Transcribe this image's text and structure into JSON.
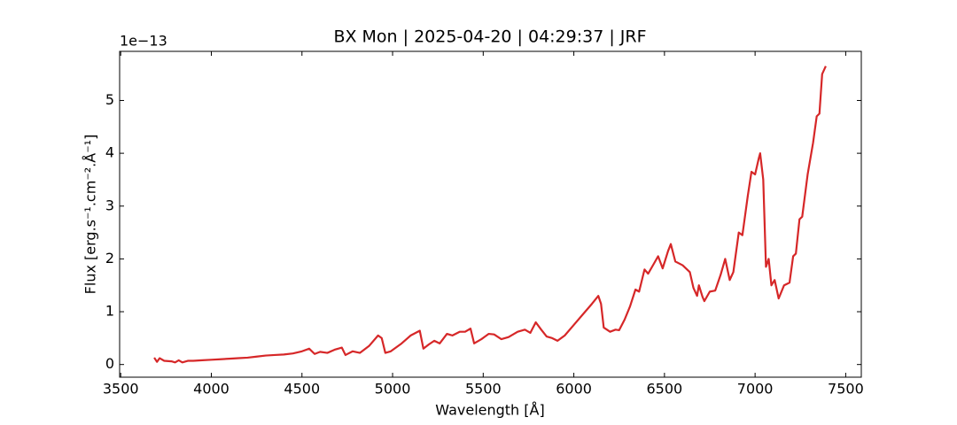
{
  "chart_data": {
    "type": "line",
    "title": "BX Mon | 2025-04-20 | 04:29:37 | JRF",
    "xlabel": "Wavelength [Å]",
    "ylabel": "Flux [erg.s⁻¹.cm⁻².Å⁻¹]",
    "y_offset_label": "1e−13",
    "color": "#d62728",
    "xlim": [
      3494,
      7586
    ],
    "ylim": [
      -0.24,
      5.93
    ],
    "xticks": [
      3500,
      4000,
      4500,
      5000,
      5500,
      6000,
      6500,
      7000,
      7500
    ],
    "yticks": [
      0,
      1,
      2,
      3,
      4,
      5
    ],
    "x": [
      3685,
      3700,
      3715,
      3740,
      3780,
      3800,
      3820,
      3840,
      3870,
      3900,
      3950,
      4000,
      4050,
      4100,
      4150,
      4200,
      4250,
      4300,
      4350,
      4400,
      4450,
      4500,
      4540,
      4570,
      4600,
      4640,
      4680,
      4720,
      4740,
      4780,
      4820,
      4870,
      4920,
      4940,
      4960,
      4990,
      5050,
      5100,
      5150,
      5170,
      5200,
      5230,
      5260,
      5300,
      5330,
      5370,
      5400,
      5430,
      5450,
      5490,
      5530,
      5560,
      5600,
      5640,
      5690,
      5730,
      5760,
      5790,
      5820,
      5850,
      5880,
      5910,
      5950,
      6000,
      6050,
      6100,
      6135,
      6150,
      6165,
      6200,
      6230,
      6250,
      6280,
      6310,
      6340,
      6360,
      6390,
      6410,
      6440,
      6465,
      6490,
      6520,
      6535,
      6560,
      6600,
      6640,
      6660,
      6680,
      6690,
      6710,
      6720,
      6750,
      6780,
      6810,
      6835,
      6860,
      6880,
      6910,
      6930,
      6960,
      6980,
      7000,
      7020,
      7028,
      7045,
      7060,
      7075,
      7090,
      7108,
      7130,
      7160,
      7190,
      7210,
      7225,
      7245,
      7260,
      7290,
      7320,
      7340,
      7355,
      7370,
      7390
    ],
    "values": [
      0.13,
      0.05,
      0.12,
      0.07,
      0.06,
      0.04,
      0.08,
      0.04,
      0.07,
      0.07,
      0.08,
      0.09,
      0.1,
      0.11,
      0.12,
      0.13,
      0.15,
      0.17,
      0.18,
      0.19,
      0.21,
      0.25,
      0.3,
      0.2,
      0.24,
      0.22,
      0.28,
      0.32,
      0.18,
      0.25,
      0.22,
      0.35,
      0.55,
      0.5,
      0.22,
      0.25,
      0.4,
      0.55,
      0.64,
      0.3,
      0.38,
      0.45,
      0.4,
      0.58,
      0.55,
      0.62,
      0.62,
      0.68,
      0.4,
      0.48,
      0.58,
      0.57,
      0.48,
      0.52,
      0.62,
      0.66,
      0.6,
      0.8,
      0.66,
      0.53,
      0.5,
      0.45,
      0.55,
      0.75,
      0.95,
      1.15,
      1.3,
      1.15,
      0.7,
      0.62,
      0.66,
      0.65,
      0.85,
      1.1,
      1.42,
      1.38,
      1.8,
      1.72,
      1.9,
      2.05,
      1.82,
      2.15,
      2.28,
      1.95,
      1.88,
      1.75,
      1.45,
      1.3,
      1.5,
      1.28,
      1.2,
      1.38,
      1.4,
      1.7,
      2.0,
      1.6,
      1.75,
      2.5,
      2.45,
      3.2,
      3.65,
      3.6,
      3.9,
      4.0,
      3.5,
      1.85,
      2.0,
      1.5,
      1.6,
      1.25,
      1.5,
      1.55,
      2.05,
      2.1,
      2.75,
      2.8,
      3.6,
      4.2,
      4.7,
      4.75,
      5.5,
      5.65
    ]
  }
}
